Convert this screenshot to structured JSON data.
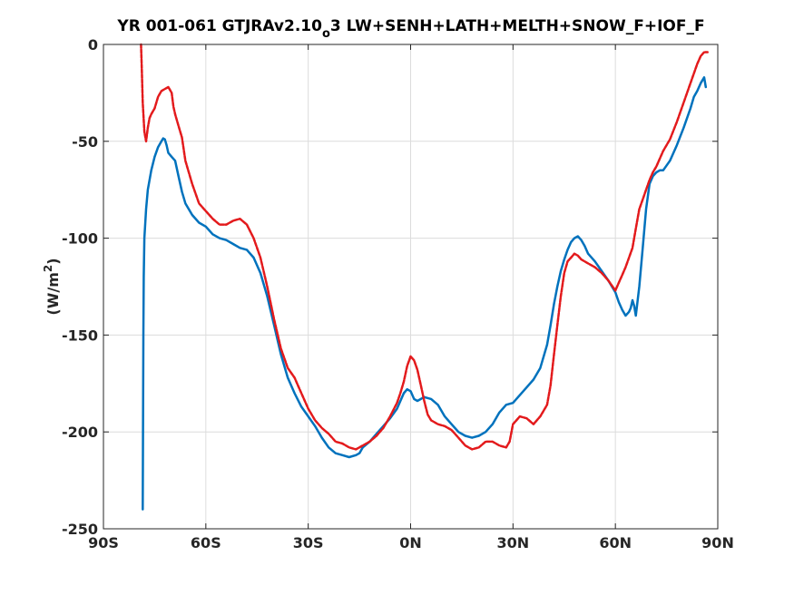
{
  "chart_data": {
    "type": "line",
    "title": {
      "main": "YR 001-061 GTJRAv2.10",
      "subscript": "o",
      "rest": "3 LW+SENH+LATH+MELTH+SNOW_F+IOF_F"
    },
    "ylabel": {
      "main": "(W/m",
      "superscript": "2",
      "close": ")"
    },
    "xlabel": "",
    "xlim": [
      -90,
      90
    ],
    "ylim": [
      -250,
      0
    ],
    "grid": true,
    "x_ticks": [
      {
        "value": -90,
        "label": "90S"
      },
      {
        "value": -60,
        "label": "60S"
      },
      {
        "value": -30,
        "label": "30S"
      },
      {
        "value": 0,
        "label": "0N"
      },
      {
        "value": 30,
        "label": "30N"
      },
      {
        "value": 60,
        "label": "60N"
      },
      {
        "value": 90,
        "label": "90N"
      }
    ],
    "y_ticks": [
      {
        "value": 0,
        "label": "0"
      },
      {
        "value": -50,
        "label": "-50"
      },
      {
        "value": -100,
        "label": "-100"
      },
      {
        "value": -150,
        "label": "-150"
      },
      {
        "value": -200,
        "label": "-200"
      },
      {
        "value": -250,
        "label": "-250"
      }
    ],
    "series": [
      {
        "color": "#0072bd",
        "style": "solid",
        "x": [
          -78.5,
          -78.4,
          -78.3,
          -78.2,
          -78.0,
          -77.5,
          -77.0,
          -76.0,
          -75.0,
          -74.0,
          -73.0,
          -72.5,
          -72.0,
          -71.5,
          -71.0,
          -70.0,
          -69.0,
          -68.0,
          -67.0,
          -66.0,
          -64.0,
          -62.0,
          -60.0,
          -58.0,
          -56.0,
          -54.0,
          -52.0,
          -50.0,
          -48.0,
          -46.0,
          -44.0,
          -42.0,
          -40.0,
          -38.0,
          -36.0,
          -34.0,
          -32.0,
          -30.0,
          -28.0,
          -26.0,
          -24.0,
          -22.0,
          -20.0,
          -18.0,
          -16.0,
          -15.0,
          -14.0,
          -12.0,
          -10.0,
          -8.0,
          -6.0,
          -4.0,
          -2.0,
          -1.0,
          0.0,
          1.0,
          2.0,
          3.0,
          4.0,
          6.0,
          8.0,
          10.0,
          12.0,
          14.0,
          16.0,
          18.0,
          20.0,
          22.0,
          24.0,
          26.0,
          28.0,
          30.0,
          32.0,
          34.0,
          36.0,
          38.0,
          40.0,
          41.0,
          42.0,
          43.0,
          44.0,
          45.0,
          46.0,
          47.0,
          48.0,
          49.0,
          50.0,
          51.0,
          52.0,
          54.0,
          56.0,
          58.0,
          60.0,
          61.0,
          62.0,
          63.0,
          64.0,
          64.5,
          65.0,
          65.5,
          66.0,
          67.0,
          68.0,
          69.0,
          70.0,
          71.0,
          72.0,
          73.0,
          74.0,
          76.0,
          78.0,
          80.0,
          82.0,
          83.0,
          84.0,
          85.0,
          86.0,
          86.5
        ],
        "values": [
          -240,
          -200,
          -150,
          -120,
          -100,
          -85,
          -75,
          -65,
          -58,
          -53,
          -50,
          -48.5,
          -49,
          -52,
          -56,
          -58,
          -60,
          -68,
          -76,
          -82,
          -88,
          -92,
          -94,
          -98,
          -100,
          -101,
          -103,
          -105,
          -106,
          -110,
          -118,
          -130,
          -145,
          -160,
          -172,
          -180,
          -187,
          -192,
          -197,
          -203,
          -208,
          -211,
          -212,
          -213,
          -212,
          -211,
          -208,
          -205,
          -201,
          -197,
          -193,
          -188,
          -180,
          -178,
          -179,
          -183,
          -184,
          -183,
          -182,
          -183,
          -186,
          -192,
          -196,
          -200,
          -202,
          -203,
          -202,
          -200,
          -196,
          -190,
          -186,
          -185,
          -181,
          -177,
          -173,
          -167,
          -155,
          -145,
          -134,
          -125,
          -117,
          -111,
          -106,
          -102,
          -100,
          -99,
          -101,
          -104,
          -108,
          -112,
          -117,
          -122,
          -128,
          -133,
          -137,
          -140,
          -138,
          -136,
          -132,
          -135,
          -140,
          -125,
          -105,
          -85,
          -72,
          -68,
          -66,
          -65,
          -65,
          -60,
          -52,
          -43,
          -33,
          -27,
          -24,
          -20,
          -17,
          -22
        ]
      },
      {
        "color": "#e31a1c",
        "style": "dashed",
        "x": [
          -79.0,
          -78.8,
          -78.5,
          -78.0,
          -77.5,
          -77.0,
          -76.5,
          -76.0,
          -75.0,
          -74.0,
          -73.0,
          -72.0,
          -71.0,
          -70.0,
          -69.5,
          -69.0,
          -68.0,
          -67.0,
          -66.0,
          -64.0,
          -62.0,
          -60.0,
          -58.0,
          -56.0,
          -54.0,
          -52.0,
          -50.0,
          -48.0,
          -46.0,
          -44.0,
          -42.0,
          -40.0,
          -38.0,
          -36.0,
          -34.0,
          -32.0,
          -30.0,
          -28.0,
          -26.0,
          -24.0,
          -22.0,
          -20.0,
          -18.0,
          -16.0,
          -14.0,
          -12.0,
          -10.0,
          -8.0,
          -6.0,
          -4.0,
          -3.0,
          -2.0,
          -1.0,
          0.0,
          1.0,
          2.0,
          3.0,
          4.0,
          5.0,
          6.0,
          8.0,
          10.0,
          12.0,
          14.0,
          16.0,
          18.0,
          20.0,
          22.0,
          24.0,
          26.0,
          28.0,
          29.0,
          30.0,
          32.0,
          34.0,
          36.0,
          38.0,
          40.0,
          41.0,
          42.0,
          43.0,
          44.0,
          45.0,
          46.0,
          47.0,
          48.0,
          49.0,
          50.0,
          51.0,
          52.0,
          54.0,
          56.0,
          58.0,
          60.0,
          61.0,
          62.0,
          63.0,
          64.0,
          65.0,
          66.0,
          67.0,
          68.0,
          69.0,
          70.0,
          71.0,
          72.0,
          74.0,
          76.0,
          78.0,
          80.0,
          82.0,
          84.0,
          85.0,
          86.0,
          87.0
        ],
        "values": [
          0,
          -10,
          -30,
          -45,
          -50,
          -43,
          -38,
          -36,
          -33,
          -27,
          -24,
          -23,
          -22,
          -25,
          -32,
          -36,
          -42,
          -48,
          -60,
          -72,
          -82,
          -86,
          -90,
          -93,
          -93,
          -91,
          -90,
          -93,
          -100,
          -110,
          -125,
          -142,
          -157,
          -167,
          -172,
          -180,
          -188,
          -194,
          -198,
          -201,
          -205,
          -206,
          -208,
          -209,
          -207,
          -205,
          -202,
          -198,
          -192,
          -185,
          -180,
          -174,
          -166,
          -161,
          -163,
          -168,
          -176,
          -184,
          -191,
          -194,
          -196,
          -197,
          -199,
          -203,
          -207,
          -209,
          -208,
          -205,
          -205,
          -207,
          -208,
          -205,
          -196,
          -192,
          -193,
          -196,
          -192,
          -186,
          -176,
          -160,
          -145,
          -130,
          -118,
          -112,
          -110,
          -108,
          -109,
          -111,
          -112,
          -113,
          -115,
          -118,
          -122,
          -127,
          -123,
          -119,
          -115,
          -110,
          -105,
          -95,
          -85,
          -80,
          -75,
          -70,
          -66,
          -63,
          -55,
          -49,
          -40,
          -30,
          -20,
          -10,
          -6,
          -4,
          -4
        ]
      }
    ]
  }
}
